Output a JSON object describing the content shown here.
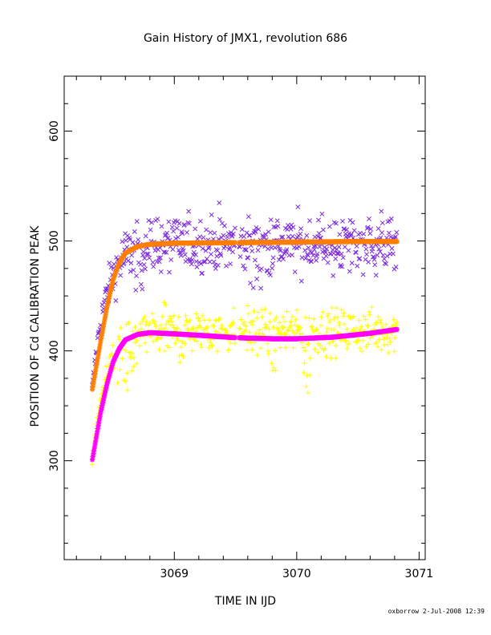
{
  "chart_data": {
    "type": "scatter",
    "title": "Gain History of JMX1, revolution 686",
    "xlabel": "TIME IN IJD",
    "ylabel": "POSITION OF Cd CALIBRATION PEAK",
    "xlim": [
      3068.1,
      3071.05
    ],
    "ylim": [
      210,
      650
    ],
    "xticks": [
      3069,
      3070,
      3071
    ],
    "xtick_labels": [
      "3069",
      "3070",
      "3071"
    ],
    "yticks": [
      300,
      400,
      500,
      600
    ],
    "ytick_labels": [
      "300",
      "400",
      "500",
      "600"
    ],
    "grid": false,
    "time_range": [
      3068.33,
      3070.82
    ],
    "gap": [
      3069.5,
      3069.53
    ],
    "series": [
      {
        "kind": "scatter",
        "marker": "x",
        "color": "#7b2ae0",
        "model": {
          "y0": 365,
          "plateau": 497,
          "tau": 0.11,
          "scatter": 13
        },
        "dips": [
          [
            3068.65,
            3068.75,
            -25
          ],
          [
            3069.62,
            3069.72,
            -32
          ],
          [
            3070.2,
            3070.3,
            -12
          ]
        ]
      },
      {
        "kind": "fit",
        "color": "#ff7f00",
        "points": [
          [
            3068.33,
            365
          ],
          [
            3068.4,
            410
          ],
          [
            3068.45,
            440
          ],
          [
            3068.5,
            465
          ],
          [
            3068.55,
            480
          ],
          [
            3068.6,
            489
          ],
          [
            3068.7,
            495
          ],
          [
            3068.8,
            497
          ],
          [
            3069.0,
            498
          ],
          [
            3069.5,
            498.5
          ],
          [
            3070.0,
            499
          ],
          [
            3070.5,
            499.5
          ],
          [
            3070.82,
            499.5
          ]
        ]
      },
      {
        "kind": "scatter",
        "marker": "+",
        "color": "#ffff00",
        "model": {
          "y0": 300,
          "plateau": 418,
          "tau": 0.11,
          "scatter": 10
        },
        "dips": [
          [
            3068.5,
            3068.7,
            -35
          ],
          [
            3069.0,
            3069.1,
            -20
          ],
          [
            3069.75,
            3069.85,
            -30
          ],
          [
            3070.05,
            3070.12,
            -40
          ]
        ]
      },
      {
        "kind": "fit",
        "color": "#ff00ff",
        "points": [
          [
            3068.33,
            301
          ],
          [
            3068.4,
            345
          ],
          [
            3068.45,
            370
          ],
          [
            3068.5,
            390
          ],
          [
            3068.55,
            402
          ],
          [
            3068.6,
            410
          ],
          [
            3068.7,
            415
          ],
          [
            3068.8,
            416.5
          ],
          [
            3069.0,
            415.5
          ],
          [
            3069.3,
            413.5
          ],
          [
            3069.5,
            412
          ],
          [
            3069.8,
            411
          ],
          [
            3070.0,
            411
          ],
          [
            3070.3,
            412.5
          ],
          [
            3070.6,
            416
          ],
          [
            3070.82,
            419.5
          ]
        ]
      }
    ]
  },
  "footer": "oxborrow  2-Jul-2008 12:39"
}
